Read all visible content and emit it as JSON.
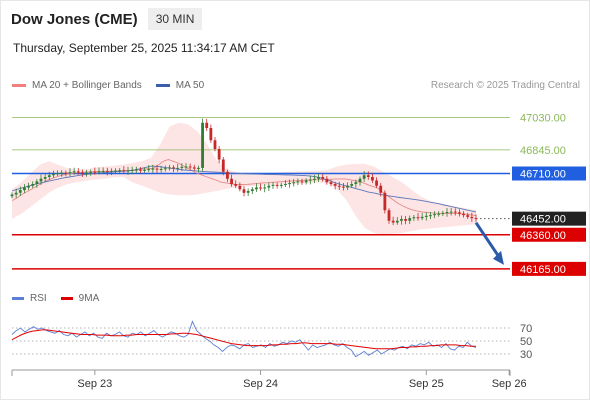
{
  "header": {
    "title": "Dow Jones (CME)",
    "timeframe": "30 MIN",
    "timestamp": "Thursday, September 25, 2025 11:34:17 AM CET",
    "copyright": "Research © 2025 Trading Central"
  },
  "legend": {
    "items": [
      {
        "label": "MA 20 + Bollinger Bands",
        "color": "#f08080"
      },
      {
        "label": "MA 50",
        "color": "#3a5ea8"
      }
    ]
  },
  "rsi_legend": {
    "items": [
      {
        "label": "RSI",
        "color": "#5b7fd6"
      },
      {
        "label": "9MA",
        "color": "#e00000"
      }
    ]
  },
  "chart_data": {
    "type": "candlestick",
    "ylim": [
      46090,
      47130
    ],
    "x_ticks": [
      {
        "label": "Sep 23",
        "t": 0.5
      },
      {
        "label": "Sep 24",
        "t": 1.5
      },
      {
        "label": "Sep 25",
        "t": 2.5
      },
      {
        "label": "Sep 26",
        "t": 3.0
      }
    ],
    "last_price": {
      "value": 46452,
      "label": "46452.00",
      "color": "#222222"
    },
    "levels": [
      {
        "value": 47030,
        "label": "47030.00",
        "type": "resistance",
        "color": "#8ab85a"
      },
      {
        "value": 46845,
        "label": "46845.00",
        "type": "resistance",
        "color": "#8ab85a"
      },
      {
        "value": 46710,
        "label": "46710.00",
        "type": "pivot",
        "color": "#1f5fe0"
      },
      {
        "value": 46360,
        "label": "46360.00",
        "type": "support",
        "color": "#dd0000"
      },
      {
        "value": 46165,
        "label": "46165.00",
        "type": "support",
        "color": "#dd0000"
      }
    ],
    "forecast_arrow": {
      "from_value": 46452,
      "to_value": 46165,
      "color": "#2a5aa8"
    },
    "close_series": [
      46590,
      46600,
      46615,
      46630,
      46640,
      46650,
      46665,
      46680,
      46690,
      46700,
      46708,
      46712,
      46715,
      46712,
      46718,
      46722,
      46716,
      46712,
      46715,
      46720,
      46718,
      46722,
      46725,
      46720,
      46723,
      46726,
      46729,
      46724,
      46727,
      46730,
      46732,
      46728,
      46731,
      46735,
      46738,
      46733,
      46736,
      46740,
      46745,
      46740,
      46742,
      46748,
      46750,
      46745,
      46738,
      46742,
      47000,
      46970,
      46900,
      46850,
      46790,
      46720,
      46680,
      46650,
      46640,
      46620,
      46600,
      46610,
      46620,
      46630,
      46625,
      46630,
      46640,
      46645,
      46640,
      46645,
      46650,
      46655,
      46660,
      46665,
      46660,
      46670,
      46675,
      46680,
      46690,
      46680,
      46660,
      46650,
      46640,
      46635,
      46630,
      46640,
      46650,
      46660,
      46680,
      46700,
      46690,
      46670,
      46640,
      46600,
      46500,
      46440,
      46430,
      46440,
      46450,
      46440,
      46455,
      46460,
      46455,
      46462,
      46468,
      46472,
      46478,
      46480,
      46485,
      46490,
      46492,
      46488,
      46480,
      46472,
      46462,
      46455,
      46452
    ],
    "ma20": [
      46555,
      46570,
      46590,
      46605,
      46620,
      46638,
      46652,
      46668,
      46680,
      46690,
      46698,
      46705,
      46710,
      46714,
      46716,
      46718,
      46720,
      46721,
      46722,
      46722,
      46723,
      46724,
      46725,
      46726,
      46727,
      46729,
      46732,
      46735,
      46738,
      46740,
      46760,
      46780,
      46790,
      46780,
      46770,
      46755,
      46740,
      46725,
      46710,
      46700,
      46690,
      46680,
      46670,
      46660,
      46655,
      46650,
      46648,
      46647,
      46648,
      46650,
      46652,
      46655,
      46657,
      46659,
      46661,
      46663,
      46665,
      46667,
      46668,
      46670,
      46672,
      46673,
      46674,
      46675,
      46676,
      46677,
      46678,
      46679,
      46680,
      46675,
      46670,
      46665,
      46655,
      46645,
      46635,
      46625,
      46600,
      46580,
      46560,
      46540,
      46525,
      46512,
      46502,
      46495,
      46490,
      46487,
      46485,
      46483,
      46482,
      46482,
      46481,
      46481,
      46480,
      46478,
      46474,
      46470
    ],
    "ma50": [
      46610,
      46622,
      46632,
      46642,
      46652,
      46660,
      46668,
      46676,
      46684,
      46690,
      46696,
      46702,
      46706,
      46710,
      46714,
      46717,
      46720,
      46722,
      46725,
      46729,
      46736,
      46745,
      46752,
      46750,
      46745,
      46740,
      46735,
      46730,
      46728,
      46725,
      46722,
      46720,
      46718,
      46716,
      46714,
      46712,
      46710,
      46708,
      46707,
      46706,
      46705,
      46704,
      46703,
      46702,
      46701,
      46700,
      46698,
      46695,
      46690,
      46680,
      46668,
      46655,
      46645,
      46635,
      46625,
      46615,
      46605,
      46598,
      46590,
      46584,
      46578,
      46573,
      46568,
      46563,
      46558,
      46552,
      46545,
      46538,
      46530,
      46522,
      46514,
      46506,
      46498,
      46490
    ],
    "bb_upper": [
      46620,
      46660,
      46710,
      46760,
      46780,
      46760,
      46740,
      46730,
      46735,
      46745,
      46750,
      46755,
      46762,
      46770,
      46780,
      46800,
      46880,
      46980,
      47000,
      46990,
      46950,
      46880,
      46790,
      46740,
      46720,
      46710,
      46710,
      46712,
      46715,
      46718,
      46720,
      46722,
      46724,
      46726,
      46730,
      46750,
      46760,
      46765,
      46765,
      46750,
      46720,
      46690,
      46660,
      46620,
      46580,
      46555,
      46540,
      46530,
      46520,
      46510,
      46500
    ],
    "bb_lower": [
      46450,
      46480,
      46520,
      46560,
      46600,
      46630,
      46650,
      46660,
      46668,
      46675,
      46680,
      46688,
      46690,
      46660,
      46640,
      46620,
      46600,
      46590,
      46585,
      46585,
      46590,
      46600,
      46610,
      46620,
      46630,
      46635,
      46638,
      46640,
      46645,
      46648,
      46650,
      46652,
      46655,
      46658,
      46655,
      46620,
      46560,
      46470,
      46400,
      46370,
      46360,
      46365,
      46370,
      46380,
      46390,
      46395,
      46400,
      46405,
      46410,
      46415,
      46420
    ],
    "rsi": {
      "levels": [
        70,
        50,
        30
      ],
      "level_labels": [
        "70",
        "50",
        "30"
      ],
      "ylim": [
        10,
        90
      ],
      "rsi_series": [
        60,
        66,
        70,
        64,
        68,
        72,
        68,
        70,
        66,
        64,
        62,
        66,
        60,
        58,
        62,
        56,
        60,
        64,
        58,
        62,
        56,
        54,
        62,
        58,
        60,
        64,
        58,
        56,
        62,
        60,
        64,
        58,
        62,
        66,
        60,
        56,
        60,
        64,
        62,
        58,
        56,
        60,
        80,
        66,
        60,
        54,
        50,
        44,
        40,
        34,
        40,
        44,
        42,
        38,
        44,
        46,
        40,
        42,
        44,
        40,
        46,
        42,
        44,
        48,
        46,
        50,
        48,
        52,
        44,
        36,
        44,
        40,
        42,
        44,
        48,
        44,
        42,
        46,
        40,
        36,
        26,
        30,
        34,
        28,
        32,
        36,
        30,
        34,
        38,
        36,
        40,
        42,
        38,
        44,
        42,
        46,
        44,
        48,
        42,
        44,
        40,
        46,
        38,
        36,
        42,
        40,
        48,
        42,
        40
      ],
      "ma_series": [
        52,
        56,
        60,
        63,
        65,
        66,
        67,
        67,
        66,
        65,
        64,
        63,
        62,
        61,
        60,
        60,
        60,
        59,
        59,
        59,
        58,
        58,
        58,
        59,
        59,
        60,
        60,
        60,
        60,
        60,
        60,
        60,
        61,
        61,
        62,
        62,
        61,
        60,
        58,
        56,
        54,
        52,
        50,
        48,
        46,
        45,
        44,
        43,
        43,
        43,
        43,
        43,
        44,
        44,
        45,
        45,
        46,
        46,
        47,
        47,
        46,
        46,
        46,
        46,
        46,
        45,
        45,
        44,
        43,
        42,
        41,
        40,
        39,
        38,
        38,
        38,
        38,
        39,
        40,
        40,
        41,
        41,
        42,
        42,
        43,
        43,
        44,
        44,
        44,
        44,
        43,
        43,
        42,
        42
      ]
    }
  }
}
